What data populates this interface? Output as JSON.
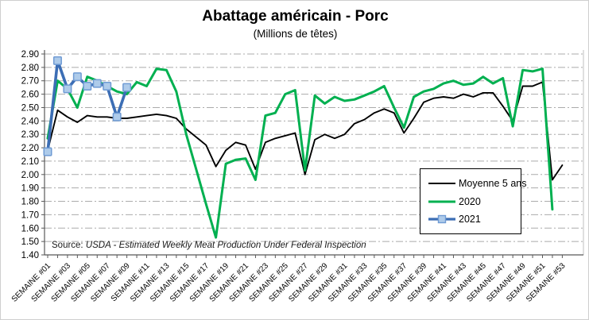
{
  "chart_data": {
    "type": "line",
    "title": "Abattage américain - Porc",
    "subtitle": "(Millions de têtes)",
    "source_prefix": "Source: ",
    "source_text": "USDA - Estimated Weekly Meat Production Under Federal Inspection",
    "xlabel": "",
    "ylabel": "",
    "ylim": [
      1.4,
      2.9
    ],
    "ytick_step": 0.1,
    "grid": "horizontal-dash-dot",
    "legend_position": "inside-right",
    "y_tick_labels": [
      "2.90",
      "2.80",
      "2.70",
      "2.60",
      "2.50",
      "2.40",
      "2.30",
      "2.20",
      "2.10",
      "2.00",
      "1.90",
      "1.80",
      "1.70",
      "1.60",
      "1.50",
      "1.40"
    ],
    "x_tick_labels": [
      "SEMAINE #01",
      "SEMAINE #03",
      "SEMAINE #05",
      "SEMAINE #07",
      "SEMAINE #09",
      "SEMAINE #11",
      "SEMAINE #13",
      "SEMAINE #15",
      "SEMAINE #17",
      "SEMAINE #19",
      "SEMAINE #21",
      "SEMAINE #23",
      "SEMAINE #25",
      "SEMAINE #27",
      "SEMAINE #29",
      "SEMAINE #31",
      "SEMAINE #33",
      "SEMAINE #35",
      "SEMAINE #37",
      "SEMAINE #39",
      "SEMAINE #41",
      "SEMAINE #43",
      "SEMAINE #45",
      "SEMAINE #47",
      "SEMAINE #49",
      "SEMAINE #51",
      "SEMAINE #53"
    ],
    "weeks": 53,
    "series": [
      {
        "name": "Moyenne 5 ans",
        "color": "#000000",
        "marker": false,
        "values": [
          2.18,
          2.48,
          2.43,
          2.39,
          2.44,
          2.43,
          2.43,
          2.42,
          2.42,
          2.43,
          2.44,
          2.45,
          2.44,
          2.42,
          2.34,
          2.28,
          2.22,
          2.06,
          2.18,
          2.24,
          2.22,
          2.04,
          2.24,
          2.27,
          2.29,
          2.31,
          2.0,
          2.26,
          2.3,
          2.27,
          2.3,
          2.38,
          2.41,
          2.46,
          2.49,
          2.46,
          2.31,
          2.42,
          2.54,
          2.57,
          2.58,
          2.57,
          2.6,
          2.58,
          2.61,
          2.61,
          2.51,
          2.4,
          2.66,
          2.66,
          2.69,
          1.96,
          2.07
        ]
      },
      {
        "name": "2020",
        "color": "#00B050",
        "marker": false,
        "values": [
          2.27,
          2.7,
          2.64,
          2.5,
          2.73,
          2.7,
          2.66,
          2.62,
          2.6,
          2.69,
          2.66,
          2.79,
          2.78,
          2.62,
          2.3,
          2.04,
          1.78,
          1.53,
          2.08,
          2.11,
          2.12,
          1.96,
          2.44,
          2.46,
          2.6,
          2.63,
          2.03,
          2.59,
          2.53,
          2.58,
          2.55,
          2.56,
          2.59,
          2.62,
          2.66,
          2.5,
          2.35,
          2.58,
          2.62,
          2.64,
          2.68,
          2.7,
          2.67,
          2.68,
          2.73,
          2.68,
          2.72,
          2.36,
          2.78,
          2.77,
          2.79,
          1.74,
          null
        ]
      },
      {
        "name": "2021",
        "color": "#3C6EB5",
        "marker": true,
        "marker_fill": "#AECBEA",
        "marker_stroke": "#6F9BD4",
        "values": [
          2.17,
          2.85,
          2.64,
          2.73,
          2.66,
          2.68,
          2.66,
          2.43,
          2.65,
          null,
          null,
          null,
          null,
          null,
          null,
          null,
          null,
          null,
          null,
          null,
          null,
          null,
          null,
          null,
          null,
          null,
          null,
          null,
          null,
          null,
          null,
          null,
          null,
          null,
          null,
          null,
          null,
          null,
          null,
          null,
          null,
          null,
          null,
          null,
          null,
          null,
          null,
          null,
          null,
          null,
          null,
          null,
          null
        ]
      }
    ]
  }
}
